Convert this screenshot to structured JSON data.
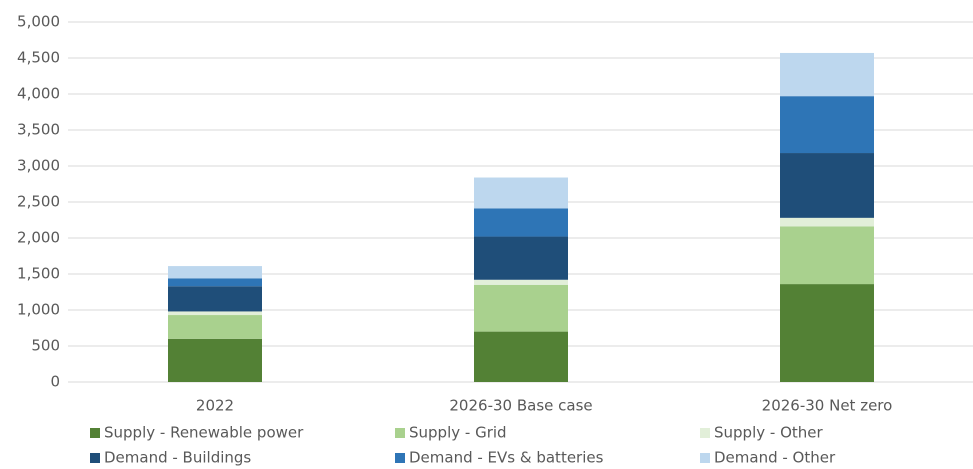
{
  "chart_data": {
    "type": "stacked_bar",
    "categories": [
      "2022",
      "2026-30 Base case",
      "2026-30 Net zero"
    ],
    "series": [
      {
        "name": "Supply - Renewable power",
        "color": "#538135",
        "values": [
          600,
          700,
          1360
        ]
      },
      {
        "name": "Supply - Grid",
        "color": "#a9d18e",
        "values": [
          330,
          650,
          800
        ]
      },
      {
        "name": "Supply - Other",
        "color": "#e2efd9",
        "values": [
          50,
          70,
          120
        ]
      },
      {
        "name": "Demand - Buildings",
        "color": "#1f4e79",
        "values": [
          350,
          600,
          900
        ]
      },
      {
        "name": "Demand - EVs & batteries",
        "color": "#2e75b6",
        "values": [
          110,
          390,
          790
        ]
      },
      {
        "name": "Demand - Other",
        "color": "#bdd7ee",
        "values": [
          170,
          430,
          600
        ]
      }
    ],
    "ylim": [
      0,
      5000
    ],
    "yticks": [
      0,
      500,
      {
        "value": 1000,
        "label": "1,000"
      },
      {
        "value": 1500,
        "label": "1,500"
      },
      {
        "value": 2000,
        "label": "2,000"
      },
      {
        "value": 2500,
        "label": "2,500"
      },
      {
        "value": 3000,
        "label": "3,000"
      },
      {
        "value": 3500,
        "label": "3,500"
      },
      {
        "value": 4000,
        "label": "4,000"
      },
      {
        "value": 4500,
        "label": "4,500"
      },
      {
        "value": 5000,
        "label": "5,000"
      }
    ],
    "grid": true
  }
}
